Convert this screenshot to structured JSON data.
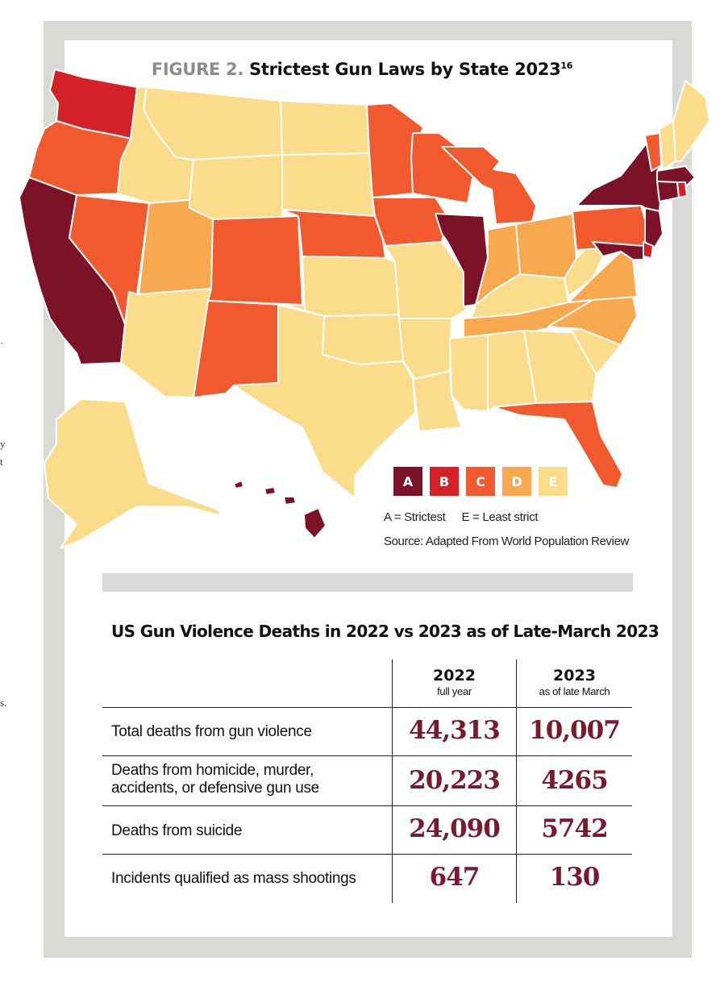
{
  "figure": {
    "label": "FIGURE 2.",
    "title": "Strictest Gun Laws by State 2023",
    "footnote": "16"
  },
  "colors": {
    "A": "#7b1228",
    "B": "#d42128",
    "C": "#f15a2e",
    "D": "#f8a84e",
    "E": "#fbdc8a",
    "number": "#7a1a2c"
  },
  "map": {
    "regions": [
      {
        "name": "Washington",
        "grade": "B"
      },
      {
        "name": "Oregon",
        "grade": "C"
      },
      {
        "name": "California",
        "grade": "A"
      },
      {
        "name": "Nevada",
        "grade": "C"
      },
      {
        "name": "Idaho",
        "grade": "E"
      },
      {
        "name": "Montana",
        "grade": "E"
      },
      {
        "name": "Wyoming",
        "grade": "E"
      },
      {
        "name": "Utah",
        "grade": "D"
      },
      {
        "name": "Arizona",
        "grade": "E"
      },
      {
        "name": "Colorado",
        "grade": "C"
      },
      {
        "name": "New Mexico",
        "grade": "C"
      },
      {
        "name": "North Dakota",
        "grade": "E"
      },
      {
        "name": "South Dakota",
        "grade": "E"
      },
      {
        "name": "Nebraska",
        "grade": "C"
      },
      {
        "name": "Kansas",
        "grade": "E"
      },
      {
        "name": "Oklahoma",
        "grade": "E"
      },
      {
        "name": "Texas",
        "grade": "E"
      },
      {
        "name": "Minnesota",
        "grade": "C"
      },
      {
        "name": "Iowa",
        "grade": "C"
      },
      {
        "name": "Missouri",
        "grade": "E"
      },
      {
        "name": "Arkansas",
        "grade": "E"
      },
      {
        "name": "Louisiana",
        "grade": "E"
      },
      {
        "name": "Wisconsin",
        "grade": "C"
      },
      {
        "name": "Illinois",
        "grade": "A"
      },
      {
        "name": "Michigan",
        "grade": "C"
      },
      {
        "name": "Indiana",
        "grade": "D"
      },
      {
        "name": "Ohio",
        "grade": "D"
      },
      {
        "name": "Kentucky",
        "grade": "E"
      },
      {
        "name": "Tennessee",
        "grade": "D"
      },
      {
        "name": "Mississippi",
        "grade": "E"
      },
      {
        "name": "Alabama",
        "grade": "E"
      },
      {
        "name": "Georgia",
        "grade": "E"
      },
      {
        "name": "Florida",
        "grade": "C"
      },
      {
        "name": "South Carolina",
        "grade": "E"
      },
      {
        "name": "North Carolina",
        "grade": "D"
      },
      {
        "name": "Virginia",
        "grade": "D"
      },
      {
        "name": "West Virginia",
        "grade": "E"
      },
      {
        "name": "Pennsylvania",
        "grade": "C"
      },
      {
        "name": "New York",
        "grade": "A"
      },
      {
        "name": "New Jersey",
        "grade": "A"
      },
      {
        "name": "Delaware",
        "grade": "B"
      },
      {
        "name": "Maryland",
        "grade": "A"
      },
      {
        "name": "Vermont",
        "grade": "C"
      },
      {
        "name": "New Hampshire",
        "grade": "E"
      },
      {
        "name": "Maine",
        "grade": "E"
      },
      {
        "name": "Massachusetts",
        "grade": "A"
      },
      {
        "name": "Connecticut",
        "grade": "A"
      },
      {
        "name": "Rhode Island",
        "grade": "B"
      },
      {
        "name": "Alaska",
        "grade": "E"
      },
      {
        "name": "Hawaii",
        "grade": "A"
      }
    ]
  },
  "legend": {
    "grades": [
      "A",
      "B",
      "C",
      "D",
      "E"
    ],
    "strictest": "A = Strictest",
    "least": "E = Least strict",
    "source": "Source: Adapted From World Population Review"
  },
  "table": {
    "title": "US Gun Violence Deaths in 2022 vs 2023 as of Late-March 2023",
    "columns": [
      {
        "year": "2022",
        "sub": "full year"
      },
      {
        "year": "2023",
        "sub": "as of late March"
      }
    ],
    "rows": [
      {
        "label": "Total deaths from gun violence",
        "v2022": "44,313",
        "v2023": "10,007"
      },
      {
        "label": "Deaths from homicide, murder,\naccidents, or defensive gun use",
        "v2022": "20,223",
        "v2023": "4265"
      },
      {
        "label": "Deaths from suicide",
        "v2022": "24,090",
        "v2023": "5742"
      },
      {
        "label": "Incidents qualified as mass shootings",
        "v2022": "647",
        "v2023": "130"
      }
    ]
  }
}
